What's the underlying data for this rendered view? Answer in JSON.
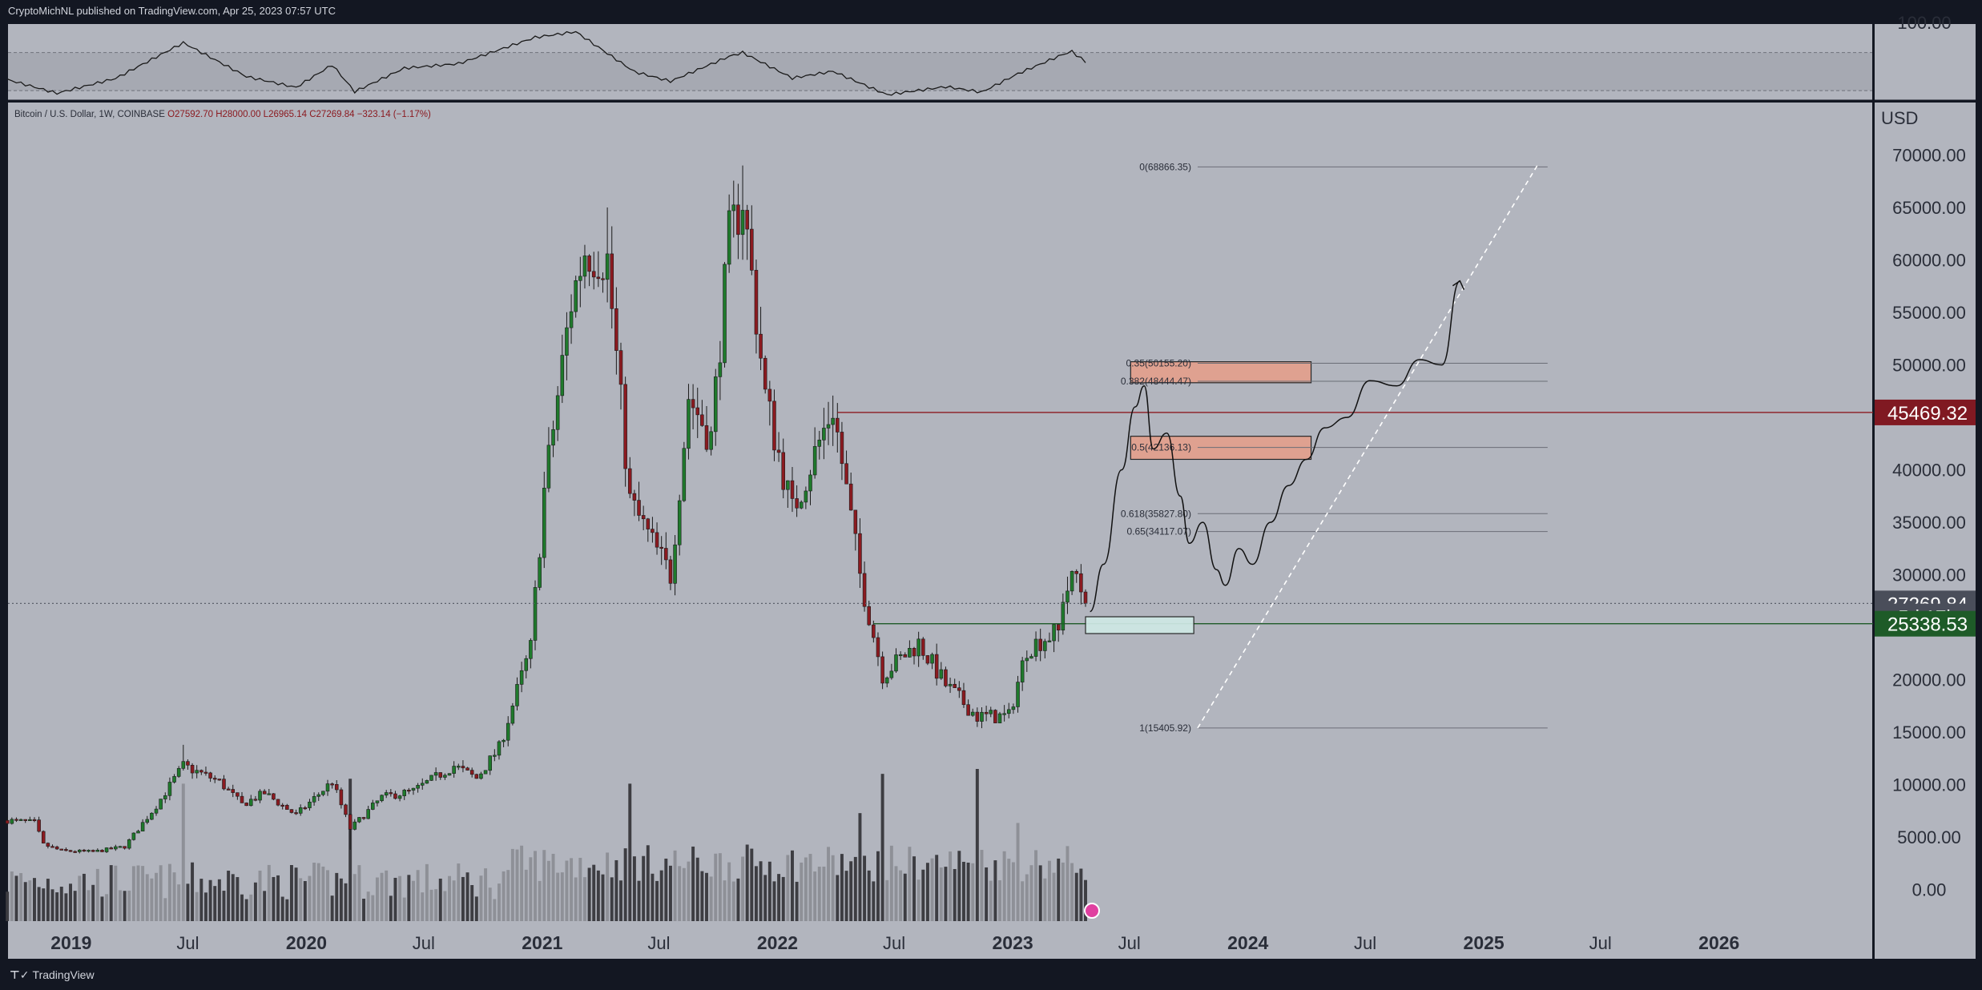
{
  "header": {
    "published": "CryptoMichNL published on TradingView.com, Apr 25, 2023 07:57 UTC"
  },
  "footer": {
    "brand": "TradingView",
    "logo_icon": "tradingview-logo-icon"
  },
  "legend": {
    "symbol": "Bitcoin / U.S. Dollar, 1W, COINBASE",
    "open": "O27592.70",
    "high": "H28000.00",
    "low": "L26965.14",
    "close": "C27269.84",
    "change": "−323.14 (−1.17%)"
  },
  "axis": {
    "currency": "USD",
    "oscillator_top_label": "100.00"
  },
  "price_badges": [
    {
      "text": "45469.32",
      "value": 45469.32,
      "color": "#801922",
      "line": true
    },
    {
      "text": "27269.84",
      "value": 27269.84,
      "color": "#4a4e5a",
      "line": false
    },
    {
      "text": "5d 17h",
      "value": 26030,
      "color": "#4a4e5a",
      "line": false
    },
    {
      "text": "25338.53",
      "value": 25338.53,
      "color": "#1e5b28",
      "line": true
    }
  ],
  "colors": {
    "up": "#1f7a2c",
    "down": "#8b1a20",
    "volume_dark": "#3d3d42",
    "volume_light": "#8e9097",
    "background": "#b2b5be",
    "zone": "#e3a08d",
    "support_box": "#cfe9e5"
  },
  "chart_data": {
    "type": "candlestick",
    "timeframe": "1W",
    "yscale": "linear",
    "ylim": [
      -3000,
      75000
    ],
    "y_ticks": [
      0,
      5000,
      10000,
      15000,
      20000,
      25000,
      30000,
      35000,
      40000,
      45000,
      50000,
      55000,
      60000,
      65000,
      70000
    ],
    "y_tick_labels": [
      "0.00",
      "5000.00",
      "10000.00",
      "15000.00",
      "20000.00",
      "25000.00",
      "30000.00",
      "35000.00",
      "40000.00",
      "45000.00",
      "50000.00",
      "55000.00",
      "60000.00",
      "65000.00",
      "70000.00"
    ],
    "x_range": [
      "2018-09-25",
      "2026-08-28"
    ],
    "x_ticks": [
      {
        "label": "2019",
        "date": "2019-01-01",
        "major": true
      },
      {
        "label": "Jul",
        "date": "2019-07-01",
        "major": false
      },
      {
        "label": "2020",
        "date": "2020-01-01",
        "major": true
      },
      {
        "label": "Jul",
        "date": "2020-07-01",
        "major": false
      },
      {
        "label": "2021",
        "date": "2021-01-01",
        "major": true
      },
      {
        "label": "Jul",
        "date": "2021-07-01",
        "major": false
      },
      {
        "label": "2022",
        "date": "2022-01-01",
        "major": true
      },
      {
        "label": "Jul",
        "date": "2022-07-01",
        "major": false
      },
      {
        "label": "2023",
        "date": "2023-01-01",
        "major": true
      },
      {
        "label": "Jul",
        "date": "2023-07-01",
        "major": false
      },
      {
        "label": "2024",
        "date": "2024-01-01",
        "major": true
      },
      {
        "label": "Jul",
        "date": "2024-07-01",
        "major": false
      },
      {
        "label": "2025",
        "date": "2025-01-01",
        "major": true
      },
      {
        "label": "Jul",
        "date": "2025-07-01",
        "major": false
      },
      {
        "label": "2026",
        "date": "2026-01-01",
        "major": true
      }
    ],
    "first_candle": "2018-09-24",
    "close_path": [
      [
        "2018-09-24",
        6600
      ],
      [
        "2018-11-05",
        6400
      ],
      [
        "2018-11-19",
        4300
      ],
      [
        "2018-12-17",
        3700
      ],
      [
        "2019-02-04",
        3600
      ],
      [
        "2019-03-25",
        4100
      ],
      [
        "2019-05-13",
        8000
      ],
      [
        "2019-06-24",
        11800
      ],
      [
        "2019-08-19",
        10300
      ],
      [
        "2019-09-23",
        8100
      ],
      [
        "2019-10-28",
        9200
      ],
      [
        "2019-12-16",
        7100
      ],
      [
        "2020-02-10",
        10300
      ],
      [
        "2020-03-09",
        5800
      ],
      [
        "2020-04-27",
        8800
      ],
      [
        "2020-06-15",
        9400
      ],
      [
        "2020-08-17",
        11800
      ],
      [
        "2020-09-21",
        10600
      ],
      [
        "2020-10-26",
        13500
      ],
      [
        "2020-12-14",
        23000
      ],
      [
        "2021-01-04",
        38000
      ],
      [
        "2021-02-15",
        56000
      ],
      [
        "2021-03-08",
        61000
      ],
      [
        "2021-04-12",
        60000
      ],
      [
        "2021-05-17",
        37000
      ],
      [
        "2021-06-21",
        33000
      ],
      [
        "2021-07-19",
        30000
      ],
      [
        "2021-08-16",
        47000
      ],
      [
        "2021-09-20",
        43000
      ],
      [
        "2021-10-18",
        62000
      ],
      [
        "2021-11-08",
        66000
      ],
      [
        "2021-12-13",
        47000
      ],
      [
        "2022-01-24",
        36000
      ],
      [
        "2022-03-28",
        46000
      ],
      [
        "2022-05-09",
        30000
      ],
      [
        "2022-06-13",
        20500
      ],
      [
        "2022-08-08",
        23500
      ],
      [
        "2022-09-19",
        19500
      ],
      [
        "2022-11-07",
        16500
      ],
      [
        "2022-12-26",
        16500
      ],
      [
        "2023-01-23",
        23000
      ],
      [
        "2023-02-20",
        24000
      ],
      [
        "2023-03-13",
        24500
      ],
      [
        "2023-03-20",
        28000
      ],
      [
        "2023-04-10",
        30000
      ],
      [
        "2023-04-24",
        27270
      ]
    ],
    "wick_peaks": [
      {
        "date": "2019-06-24",
        "value": 13800
      },
      {
        "date": "2021-04-12",
        "value": 65000
      },
      {
        "date": "2021-11-08",
        "value": 69000
      },
      {
        "date": "2022-11-07",
        "value": 15500
      },
      {
        "date": "2020-03-09",
        "value": 3800
      }
    ],
    "volume_scale": {
      "base_value": -3000,
      "max_value": 11500
    },
    "volume_spikes": [
      {
        "date": "2019-06-24",
        "value": 14000
      },
      {
        "date": "2020-03-09",
        "value": 14500
      },
      {
        "date": "2021-05-17",
        "value": 14000
      },
      {
        "date": "2022-05-09",
        "value": 11000
      },
      {
        "date": "2022-06-13",
        "value": 15000
      },
      {
        "date": "2022-11-07",
        "value": 15500
      },
      {
        "date": "2023-01-09",
        "value": 10000
      }
    ],
    "projection_path": [
      [
        "2023-05-01",
        26500
      ],
      [
        "2023-05-22",
        31000
      ],
      [
        "2023-06-19",
        40000
      ],
      [
        "2023-07-10",
        46000
      ],
      [
        "2023-07-24",
        48000
      ],
      [
        "2023-08-07",
        42000
      ],
      [
        "2023-08-28",
        43500
      ],
      [
        "2023-09-18",
        37500
      ],
      [
        "2023-10-02",
        33000
      ],
      [
        "2023-10-23",
        35000
      ],
      [
        "2023-11-13",
        30500
      ],
      [
        "2023-11-27",
        29000
      ],
      [
        "2023-12-18",
        32500
      ],
      [
        "2024-01-08",
        31000
      ],
      [
        "2024-02-05",
        35000
      ],
      [
        "2024-03-04",
        38500
      ],
      [
        "2024-04-01",
        41000
      ],
      [
        "2024-04-29",
        44000
      ],
      [
        "2024-06-03",
        45000
      ],
      [
        "2024-07-08",
        48500
      ],
      [
        "2024-08-19",
        48000
      ],
      [
        "2024-09-23",
        50500
      ],
      [
        "2024-10-28",
        50000
      ],
      [
        "2024-11-25",
        58000
      ]
    ],
    "fib_levels": [
      {
        "label": "0(68866.35)",
        "value": 68866.35,
        "boxed": false
      },
      {
        "label": "0.35(50155.20)",
        "value": 50155.2,
        "boxed": true
      },
      {
        "label": "0.382(48444.47)",
        "value": 48444.47,
        "boxed": true
      },
      {
        "label": "0.5(42136.13)",
        "value": 42136.13,
        "boxed": true
      },
      {
        "label": "0.618(35827.80)",
        "value": 35827.8,
        "boxed": false
      },
      {
        "label": "0.65(34117.07)",
        "value": 34117.07,
        "boxed": false
      },
      {
        "label": "1(15405.92)",
        "value": 15405.92,
        "boxed": false
      }
    ],
    "fib_trend_line": {
      "from": [
        "2023-10-15",
        15400
      ],
      "to": [
        "2025-03-25",
        69000
      ]
    },
    "zones": [
      {
        "name": "upper-resistance-zone",
        "from": "2023-07-03",
        "to": "2024-04-08",
        "top": 50300,
        "bottom": 48300
      },
      {
        "name": "middle-resistance-zone",
        "from": "2023-07-03",
        "to": "2024-04-08",
        "top": 43200,
        "bottom": 41000
      },
      {
        "name": "support-zone",
        "from": "2023-04-24",
        "to": "2023-10-09",
        "top": 26000,
        "bottom": 24400
      }
    ],
    "horizontal_lines": [
      {
        "value": 45469.32,
        "from": "2022-04-04",
        "color": "#8b1a20"
      },
      {
        "value": 25338.53,
        "from": "2022-05-30",
        "color": "#1e5b28"
      },
      {
        "value": 27269.84,
        "from": "2018-09-25",
        "color": "#5c606b",
        "dotted": true
      }
    ],
    "oscillator": {
      "ylim": [
        20,
        100
      ],
      "band": [
        30,
        70
      ],
      "series": [
        [
          "2018-09-24",
          40
        ],
        [
          "2018-12-10",
          26
        ],
        [
          "2019-03-11",
          42
        ],
        [
          "2019-06-24",
          80
        ],
        [
          "2019-09-30",
          45
        ],
        [
          "2019-12-16",
          34
        ],
        [
          "2020-02-10",
          58
        ],
        [
          "2020-03-16",
          30
        ],
        [
          "2020-06-01",
          55
        ],
        [
          "2020-08-24",
          60
        ],
        [
          "2020-12-21",
          88
        ],
        [
          "2021-02-22",
          94
        ],
        [
          "2021-05-24",
          52
        ],
        [
          "2021-07-19",
          42
        ],
        [
          "2021-10-18",
          68
        ],
        [
          "2021-11-08",
          72
        ],
        [
          "2022-01-24",
          45
        ],
        [
          "2022-03-28",
          52
        ],
        [
          "2022-06-20",
          27
        ],
        [
          "2022-09-19",
          35
        ],
        [
          "2022-11-14",
          29
        ],
        [
          "2023-01-09",
          48
        ],
        [
          "2023-03-20",
          68
        ],
        [
          "2023-04-03",
          71
        ],
        [
          "2023-04-24",
          60
        ]
      ]
    }
  }
}
